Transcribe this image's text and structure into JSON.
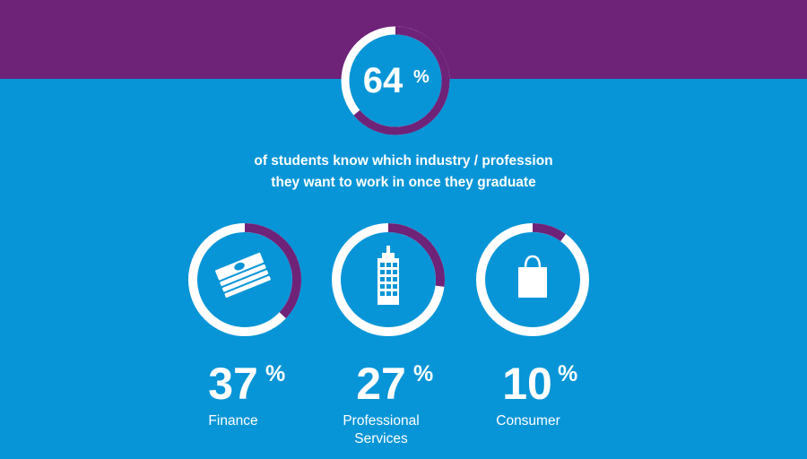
{
  "headline": {
    "value": 64,
    "value_text": "64",
    "pct_symbol": "%",
    "line1": "of students know which industry / profession",
    "line2": "they want to work in once they graduate"
  },
  "colors": {
    "background": "#0795d7",
    "band": "#6e2378",
    "ring_track": "#ffffff",
    "ring_fill": "#6e2378",
    "text": "#ffffff"
  },
  "chart_data": {
    "type": "donut",
    "series": [
      {
        "value": 64,
        "label": "64%",
        "description": "of students know which industry / profession they want to work in once they graduate"
      },
      {
        "value": 37,
        "label": "37%",
        "category": "Finance",
        "icon": "money-stack-icon"
      },
      {
        "value": 27,
        "label": "27%",
        "category": "Professional Services",
        "icon": "office-building-icon"
      },
      {
        "value": 10,
        "label": "10%",
        "category": "Consumer",
        "icon": "shopping-bag-icon"
      }
    ]
  },
  "categories": [
    {
      "value": 37,
      "number": "37",
      "pct": "%",
      "label_line1": "Finance",
      "label_line2": "",
      "icon": "money-stack-icon"
    },
    {
      "value": 27,
      "number": "27",
      "pct": "%",
      "label_line1": "Professional",
      "label_line2": "Services",
      "icon": "office-building-icon"
    },
    {
      "value": 10,
      "number": "10",
      "pct": "%",
      "label_line1": "Consumer",
      "label_line2": "",
      "icon": "shopping-bag-icon"
    }
  ]
}
